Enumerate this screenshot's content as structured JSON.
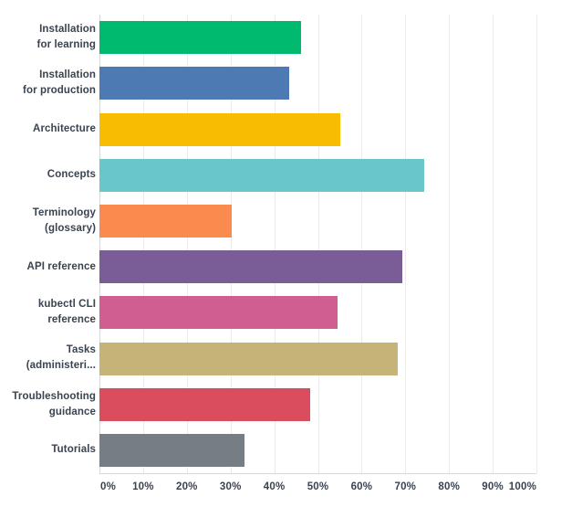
{
  "chart_data": {
    "type": "bar",
    "orientation": "horizontal",
    "categories": [
      "Installation for learning",
      "Installation for production",
      "Architecture",
      "Concepts",
      "Terminology (glossary)",
      "API reference",
      "kubectl CLI reference",
      "Tasks (administeri...",
      "Troubleshooting guidance",
      "Tutorials"
    ],
    "category_lines": [
      [
        "Installation",
        "for learning"
      ],
      [
        "Installation",
        "for production"
      ],
      [
        "Architecture"
      ],
      [
        "Concepts"
      ],
      [
        "Terminology",
        "(glossary)"
      ],
      [
        "API reference"
      ],
      [
        "kubectl CLI",
        "reference"
      ],
      [
        "Tasks",
        "(administeri..."
      ],
      [
        "Troubleshooting",
        "guidance"
      ],
      [
        "Tutorials"
      ]
    ],
    "values": [
      46.2,
      43.4,
      55.2,
      74.3,
      30.3,
      69.4,
      54.4,
      68.3,
      48.3,
      33.1
    ],
    "unit": "%",
    "bar_colors": [
      "#00ba6f",
      "#4e7ab3",
      "#f8bd00",
      "#69c6cb",
      "#fb8a4e",
      "#7a5c96",
      "#d15e90",
      "#c5b377",
      "#d94d5f",
      "#757e85"
    ],
    "xlim": [
      0,
      100
    ],
    "x_ticks": [
      "0%",
      "10%",
      "20%",
      "30%",
      "40%",
      "50%",
      "60%",
      "70%",
      "80%",
      "90%",
      "100%"
    ],
    "grid": "vertical",
    "legend": "none"
  },
  "colors": {
    "background": "#ffffff",
    "text": "#3a4350",
    "gridline": "#ebebeb",
    "axis_line": "#d8d8d8"
  }
}
